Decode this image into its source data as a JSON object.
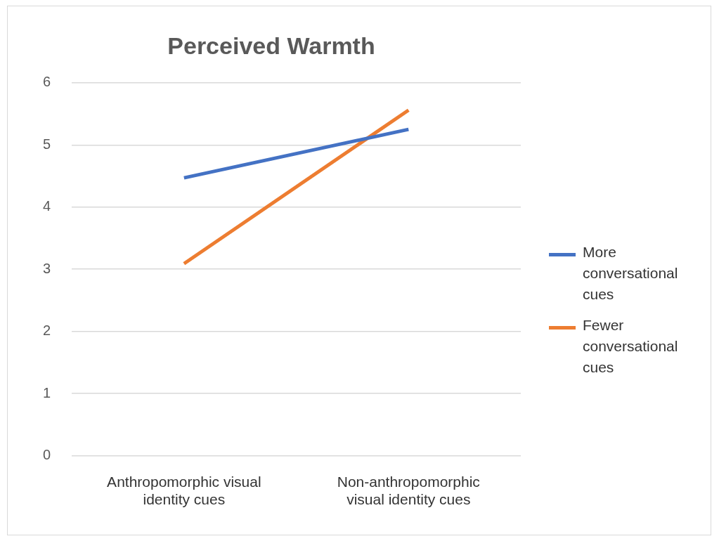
{
  "chart_data": {
    "type": "line",
    "title": "Perceived Warmth",
    "categories": [
      "Anthropomorphic visual identity cues",
      "Non-anthropomorphic visual identity cues"
    ],
    "series": [
      {
        "name": "More conversational cues",
        "color": "#4472c4",
        "values": [
          4.47,
          5.25
        ]
      },
      {
        "name": "Fewer conversational cues",
        "color": "#ed7d31",
        "values": [
          3.09,
          5.56
        ]
      }
    ],
    "ylim": [
      0,
      6
    ],
    "yticks": [
      0,
      1,
      2,
      3,
      4,
      5,
      6
    ],
    "grid": "y",
    "legend": "right",
    "marker": "none"
  }
}
